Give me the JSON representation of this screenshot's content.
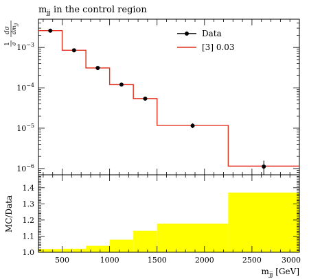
{
  "chart_data": [
    {
      "type": "line",
      "title": "m_jj in the control region",
      "title_main": "m",
      "title_sub": "jj",
      "title_rest": " in the control region",
      "ylabel": "1/σ dσ/dm_jj",
      "yscale": "log",
      "ylim": [
        7e-07,
        0.005
      ],
      "xlim": [
        250,
        3000
      ],
      "yticks": [
        {
          "value": 0.001,
          "base": "10",
          "exp": "−3"
        },
        {
          "value": 0.0001,
          "base": "10",
          "exp": "−4"
        },
        {
          "value": 1e-05,
          "base": "10",
          "exp": "−5"
        },
        {
          "value": 1e-06,
          "base": "10",
          "exp": "−6"
        }
      ],
      "legend_position": "top-right",
      "series": [
        {
          "name": "Data",
          "kind": "points",
          "color": "#000000",
          "x": [
            375,
            625,
            875,
            1125,
            1375,
            1875,
            2625
          ],
          "y": [
            0.0026,
            0.00085,
            0.00031,
            0.00012,
            5.4e-05,
            1.15e-05,
            1.12e-06
          ],
          "yerr_low": [
            0,
            0,
            0,
            0,
            0,
            1.5e-06,
            5e-07
          ],
          "yerr_high": [
            0,
            0,
            0,
            0,
            0,
            1.7e-06,
            4.5e-07
          ]
        },
        {
          "name": "[3] 0.03",
          "kind": "histogram",
          "color": "#e2301c",
          "bin_edges": [
            250,
            500,
            750,
            1000,
            1250,
            1500,
            2250,
            3000
          ],
          "values": [
            0.0026,
            0.00085,
            0.00031,
            0.00012,
            5.4e-05,
            1.17e-05,
            1.15e-06
          ]
        }
      ]
    },
    {
      "type": "bar",
      "ylabel": "MC/Data",
      "xlabel": "m_jj [GeV]",
      "xlabel_main": "m",
      "xlabel_sub": "jj",
      "xlabel_rest": " [GeV]",
      "xlim": [
        250,
        3000
      ],
      "ylim": [
        1.0,
        1.48
      ],
      "xticks": [
        500,
        1000,
        1500,
        2000,
        2500,
        3000
      ],
      "yticks": [
        1.0,
        1.1,
        1.2,
        1.3,
        1.4
      ],
      "ytick_labels": [
        "1.0",
        "1.1",
        "1.2",
        "1.3",
        "1.4"
      ],
      "band_color": "#ffff00",
      "bin_edges": [
        250,
        500,
        750,
        1000,
        1250,
        1500,
        2250,
        3000
      ],
      "values": [
        1.02,
        1.022,
        1.04,
        1.078,
        1.133,
        1.177,
        1.37
      ]
    }
  ]
}
